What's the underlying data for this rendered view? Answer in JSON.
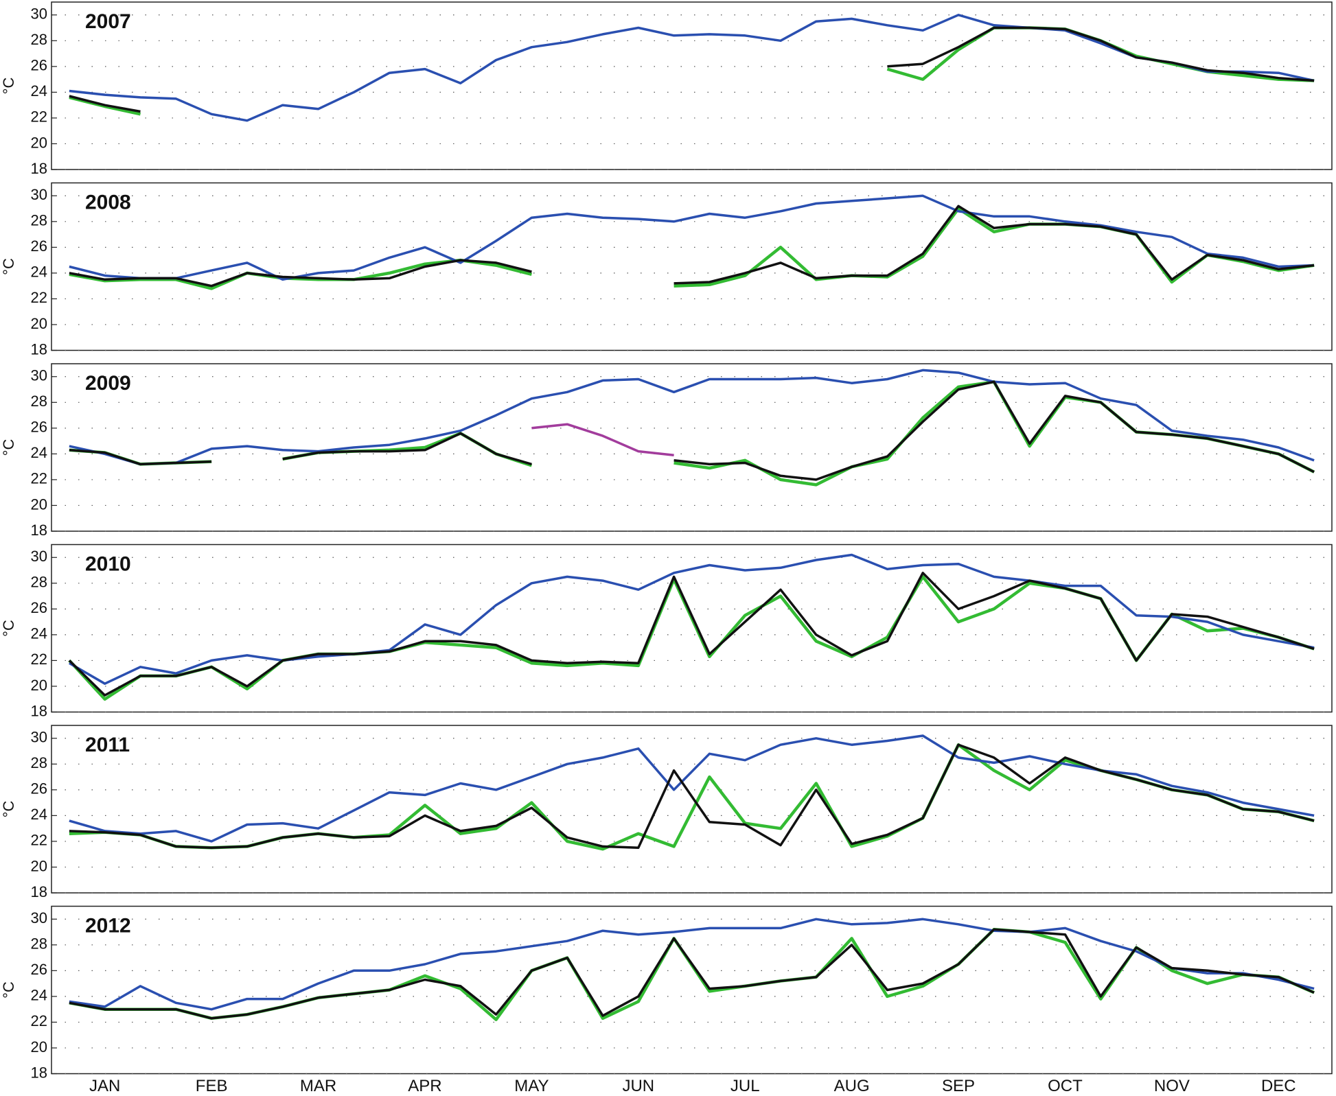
{
  "chart_data": [
    {
      "type": "line",
      "title": "2007",
      "ylabel": "°C",
      "ylim": [
        18,
        31
      ],
      "yticks": [
        18,
        20,
        22,
        24,
        26,
        28,
        30
      ],
      "grid": true,
      "series": [
        {
          "color": "#33bb33",
          "values": [
            23.6,
            22.9,
            22.3,
            null,
            null,
            null,
            null,
            null,
            null,
            null,
            null,
            null,
            null,
            null,
            null,
            null,
            null,
            null,
            null,
            null,
            null,
            null,
            null,
            25.8,
            25.0,
            27.3,
            29.0,
            29.0,
            28.9,
            28.0,
            26.8,
            26.2,
            25.6,
            25.3,
            25.0,
            24.9
          ]
        },
        {
          "color": "#2a4fb0",
          "values": [
            24.1,
            23.8,
            23.6,
            23.5,
            22.3,
            21.8,
            23.0,
            22.7,
            24.0,
            25.5,
            25.8,
            24.7,
            26.5,
            27.5,
            27.9,
            28.5,
            29.0,
            28.4,
            28.5,
            28.4,
            28.0,
            29.5,
            29.7,
            29.2,
            28.8,
            30.0,
            29.2,
            29.0,
            28.8,
            27.8,
            26.7,
            26.3,
            25.6,
            25.6,
            25.5,
            24.9
          ]
        },
        {
          "color": "#111111",
          "values": [
            23.7,
            23.0,
            22.5,
            null,
            null,
            null,
            null,
            null,
            null,
            null,
            null,
            null,
            null,
            null,
            null,
            null,
            null,
            null,
            null,
            null,
            null,
            null,
            null,
            26.0,
            26.2,
            27.5,
            29.0,
            29.0,
            28.9,
            28.0,
            26.7,
            26.3,
            25.7,
            25.5,
            25.1,
            24.9
          ]
        }
      ]
    },
    {
      "type": "line",
      "title": "2008",
      "ylabel": "°C",
      "ylim": [
        18,
        31
      ],
      "yticks": [
        18,
        20,
        22,
        24,
        26,
        28,
        30
      ],
      "grid": true,
      "series": [
        {
          "color": "#33bb33",
          "values": [
            23.9,
            23.4,
            23.5,
            23.5,
            22.8,
            24.0,
            23.6,
            23.5,
            23.5,
            24.0,
            24.7,
            25.0,
            24.6,
            23.9,
            null,
            null,
            null,
            23.0,
            23.1,
            23.8,
            26.0,
            23.5,
            23.8,
            23.7,
            25.3,
            29.0,
            27.2,
            27.8,
            27.8,
            27.6,
            27.0,
            23.3,
            25.4,
            24.9,
            24.2,
            24.6
          ]
        },
        {
          "color": "#2a4fb0",
          "values": [
            24.5,
            23.8,
            23.6,
            23.6,
            24.2,
            24.8,
            23.5,
            24.0,
            24.2,
            25.2,
            26.0,
            24.8,
            26.5,
            28.3,
            28.6,
            28.3,
            28.2,
            28.0,
            28.6,
            28.3,
            28.8,
            29.4,
            29.6,
            29.8,
            30.0,
            28.8,
            28.4,
            28.4,
            28.0,
            27.7,
            27.2,
            26.8,
            25.5,
            25.2,
            24.5,
            24.6
          ]
        },
        {
          "color": "#111111",
          "values": [
            24.0,
            23.5,
            23.6,
            23.6,
            23.0,
            24.0,
            23.7,
            23.6,
            23.5,
            23.6,
            24.5,
            25.0,
            24.8,
            24.1,
            null,
            null,
            null,
            23.2,
            23.3,
            24.0,
            24.8,
            23.6,
            23.8,
            23.8,
            25.5,
            29.2,
            27.5,
            27.8,
            27.8,
            27.6,
            27.0,
            23.5,
            25.4,
            25.0,
            24.3,
            24.6
          ]
        }
      ]
    },
    {
      "type": "line",
      "title": "2009",
      "ylabel": "°C",
      "ylim": [
        18,
        31
      ],
      "yticks": [
        18,
        20,
        22,
        24,
        26,
        28,
        30
      ],
      "grid": true,
      "series": [
        {
          "color": "#33bb33",
          "values": [
            24.3,
            24.1,
            23.2,
            23.3,
            23.4,
            null,
            23.6,
            24.1,
            24.2,
            24.3,
            24.5,
            25.6,
            24.0,
            23.1,
            null,
            null,
            null,
            23.3,
            22.9,
            23.5,
            22.0,
            21.6,
            23.0,
            23.6,
            26.8,
            29.2,
            29.6,
            24.6,
            28.4,
            28.0,
            25.7,
            25.5,
            25.2,
            24.6,
            24.0,
            22.6
          ]
        },
        {
          "color": "#2a4fb0",
          "values": [
            24.6,
            24.0,
            23.2,
            23.3,
            24.4,
            24.6,
            24.3,
            24.2,
            24.5,
            24.7,
            25.2,
            25.8,
            27.0,
            28.3,
            28.8,
            29.7,
            29.8,
            28.8,
            29.8,
            29.8,
            29.8,
            29.9,
            29.5,
            29.8,
            30.5,
            30.3,
            29.6,
            29.4,
            29.5,
            28.3,
            27.8,
            25.8,
            25.4,
            25.1,
            24.5,
            23.5
          ]
        },
        {
          "color": "#a23c9c",
          "values": [
            null,
            null,
            null,
            null,
            null,
            null,
            null,
            null,
            null,
            null,
            null,
            null,
            null,
            26.0,
            26.3,
            25.4,
            24.2,
            23.9,
            null,
            null,
            null,
            null,
            null,
            null,
            null,
            null,
            null,
            null,
            null,
            null,
            null,
            null,
            null,
            null,
            null,
            null
          ]
        },
        {
          "color": "#111111",
          "values": [
            24.3,
            24.1,
            23.2,
            23.3,
            23.4,
            null,
            23.6,
            24.1,
            24.2,
            24.2,
            24.3,
            25.6,
            24.0,
            23.2,
            null,
            null,
            null,
            23.5,
            23.2,
            23.3,
            22.3,
            22.0,
            23.0,
            23.8,
            26.5,
            29.0,
            29.6,
            24.8,
            28.5,
            28.0,
            25.7,
            25.5,
            25.2,
            24.6,
            24.0,
            22.6
          ]
        }
      ]
    },
    {
      "type": "line",
      "title": "2010",
      "ylabel": "°C",
      "ylim": [
        18,
        31
      ],
      "yticks": [
        18,
        20,
        22,
        24,
        26,
        28,
        30
      ],
      "grid": true,
      "series": [
        {
          "color": "#33bb33",
          "values": [
            22.0,
            19.0,
            20.8,
            20.8,
            21.5,
            19.8,
            22.0,
            22.5,
            22.5,
            22.7,
            23.4,
            23.2,
            23.0,
            21.8,
            21.6,
            21.8,
            21.6,
            28.3,
            22.3,
            25.5,
            27.0,
            23.5,
            22.3,
            23.8,
            28.5,
            25.0,
            26.0,
            28.0,
            27.6,
            26.8,
            22.0,
            25.6,
            24.3,
            24.5,
            23.8,
            22.9
          ]
        },
        {
          "color": "#2a4fb0",
          "values": [
            21.8,
            20.2,
            21.5,
            21.0,
            22.0,
            22.4,
            22.0,
            22.3,
            22.5,
            22.8,
            24.8,
            24.0,
            26.3,
            28.0,
            28.5,
            28.2,
            27.5,
            28.8,
            29.4,
            29.0,
            29.2,
            29.8,
            30.2,
            29.1,
            29.4,
            29.5,
            28.5,
            28.2,
            27.8,
            27.8,
            25.5,
            25.4,
            25.0,
            24.0,
            23.5,
            23.0
          ]
        },
        {
          "color": "#111111",
          "values": [
            22.0,
            19.3,
            20.8,
            20.8,
            21.5,
            20.0,
            22.0,
            22.5,
            22.5,
            22.7,
            23.5,
            23.5,
            23.2,
            22.0,
            21.8,
            21.9,
            21.8,
            28.5,
            22.5,
            25.0,
            27.5,
            24.0,
            22.4,
            23.5,
            28.8,
            26.0,
            27.0,
            28.2,
            27.6,
            26.8,
            22.0,
            25.6,
            25.4,
            24.6,
            23.8,
            22.9
          ]
        }
      ]
    },
    {
      "type": "line",
      "title": "2011",
      "ylabel": "°C",
      "ylim": [
        18,
        31
      ],
      "yticks": [
        18,
        20,
        22,
        24,
        26,
        28,
        30
      ],
      "grid": true,
      "series": [
        {
          "color": "#33bb33",
          "values": [
            22.6,
            22.7,
            22.5,
            21.6,
            21.5,
            21.6,
            22.3,
            22.6,
            22.3,
            22.5,
            24.8,
            22.6,
            23.0,
            25.0,
            22.0,
            21.4,
            22.6,
            21.6,
            27.0,
            23.4,
            23.0,
            26.5,
            21.6,
            22.4,
            23.8,
            29.5,
            27.5,
            26.0,
            28.3,
            27.5,
            26.8,
            26.0,
            25.6,
            24.5,
            24.3,
            23.6
          ]
        },
        {
          "color": "#2a4fb0",
          "values": [
            23.6,
            22.8,
            22.6,
            22.8,
            22.0,
            23.3,
            23.4,
            23.0,
            24.4,
            25.8,
            25.6,
            26.5,
            26.0,
            27.0,
            28.0,
            28.5,
            29.2,
            26.0,
            28.8,
            28.3,
            29.5,
            30.0,
            29.5,
            29.8,
            30.2,
            28.5,
            28.1,
            28.6,
            28.0,
            27.5,
            27.2,
            26.3,
            25.8,
            25.0,
            24.5,
            24.0
          ]
        },
        {
          "color": "#111111",
          "values": [
            22.8,
            22.7,
            22.5,
            21.6,
            21.5,
            21.6,
            22.3,
            22.6,
            22.3,
            22.4,
            24.0,
            22.8,
            23.2,
            24.6,
            22.3,
            21.6,
            21.5,
            27.5,
            23.5,
            23.3,
            21.7,
            26.0,
            21.8,
            22.5,
            23.8,
            29.5,
            28.5,
            26.5,
            28.5,
            27.5,
            26.8,
            26.0,
            25.6,
            24.5,
            24.3,
            23.6
          ]
        }
      ]
    },
    {
      "type": "line",
      "title": "2012",
      "ylabel": "°C",
      "ylim": [
        18,
        31
      ],
      "yticks": [
        18,
        20,
        22,
        24,
        26,
        28,
        30
      ],
      "grid": true,
      "categories": [
        null,
        "JAN",
        null,
        null,
        "FEB",
        null,
        null,
        "MAR",
        null,
        null,
        "APR",
        null,
        null,
        "MAY",
        null,
        null,
        "JUN",
        null,
        null,
        "JUL",
        null,
        null,
        "AUG",
        null,
        null,
        "SEP",
        null,
        null,
        "OCT",
        null,
        null,
        "NOV",
        null,
        null,
        "DEC",
        null
      ],
      "series": [
        {
          "color": "#33bb33",
          "values": [
            23.5,
            23.0,
            23.0,
            23.0,
            22.3,
            22.6,
            23.2,
            23.9,
            24.2,
            24.5,
            25.6,
            24.6,
            22.2,
            26.0,
            27.0,
            22.3,
            23.6,
            28.5,
            24.4,
            24.8,
            25.2,
            25.5,
            28.5,
            24.0,
            24.8,
            26.5,
            29.2,
            29.0,
            28.2,
            23.8,
            27.8,
            26.0,
            25.0,
            25.7,
            25.5,
            24.3
          ]
        },
        {
          "color": "#2a4fb0",
          "values": [
            23.6,
            23.2,
            24.8,
            23.5,
            23.0,
            23.8,
            23.8,
            25.0,
            26.0,
            26.0,
            26.5,
            27.3,
            27.5,
            27.9,
            28.3,
            29.1,
            28.8,
            29.0,
            29.3,
            29.3,
            29.3,
            30.0,
            29.6,
            29.7,
            30.0,
            29.6,
            29.1,
            29.0,
            29.3,
            28.3,
            27.5,
            26.2,
            25.8,
            25.8,
            25.3,
            24.6
          ]
        },
        {
          "color": "#111111",
          "values": [
            23.5,
            23.0,
            23.0,
            23.0,
            22.3,
            22.6,
            23.2,
            23.9,
            24.2,
            24.5,
            25.3,
            24.8,
            22.6,
            26.0,
            27.0,
            22.5,
            24.0,
            28.5,
            24.6,
            24.8,
            25.2,
            25.5,
            28.0,
            24.5,
            25.0,
            26.5,
            29.2,
            29.0,
            28.8,
            24.0,
            27.8,
            26.2,
            26.0,
            25.7,
            25.5,
            24.3
          ]
        }
      ]
    }
  ]
}
